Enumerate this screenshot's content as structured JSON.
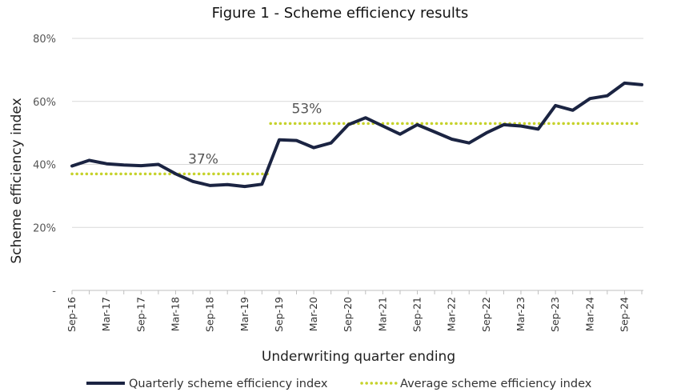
{
  "chart_data": {
    "type": "line",
    "title": "Figure 1 - Scheme efficiency results",
    "xlabel": "Underwriting quarter ending",
    "ylabel": "Scheme efficiency index",
    "ylim": [
      0,
      80
    ],
    "yticks": [
      0,
      20,
      40,
      60,
      80
    ],
    "ytick_labels": [
      "-",
      "20%",
      "40%",
      "60%",
      "80%"
    ],
    "x": [
      "Sep-16",
      "Dec-16",
      "Mar-17",
      "Jun-17",
      "Sep-17",
      "Dec-17",
      "Mar-18",
      "Jun-18",
      "Sep-18",
      "Dec-18",
      "Mar-19",
      "Jun-19",
      "Sep-19",
      "Dec-19",
      "Mar-20",
      "Jun-20",
      "Sep-20",
      "Dec-20",
      "Mar-21",
      "Jun-21",
      "Sep-21",
      "Dec-21",
      "Mar-22",
      "Jun-22",
      "Sep-22",
      "Dec-22",
      "Mar-23",
      "Jun-23",
      "Sep-23",
      "Dec-23",
      "Mar-24",
      "Jun-24",
      "Sep-24",
      "Dec-24"
    ],
    "xtick_labels": [
      "Sep-16",
      "Mar-17",
      "Sep-17",
      "Mar-18",
      "Sep-18",
      "Mar-19",
      "Sep-19",
      "Mar-20",
      "Sep-20",
      "Mar-21",
      "Sep-21",
      "Mar-22",
      "Sep-22",
      "Mar-23",
      "Sep-23",
      "Mar-24",
      "Sep-24"
    ],
    "grid": "horizontal",
    "legend_position": "bottom",
    "series": [
      {
        "name": "Quarterly scheme efficiency index",
        "style": "solid",
        "color": "#1b2442",
        "values": [
          39.5,
          41.3,
          40.2,
          39.8,
          39.6,
          40.0,
          37.0,
          34.6,
          33.3,
          33.6,
          33.0,
          33.7,
          47.8,
          47.6,
          45.3,
          46.8,
          52.6,
          54.8,
          52.2,
          49.6,
          52.6,
          50.3,
          48.0,
          46.8,
          50.0,
          52.6,
          52.2,
          51.2,
          58.7,
          57.2,
          60.9,
          61.8,
          65.8,
          65.3
        ]
      },
      {
        "name": "Average scheme efficiency index",
        "style": "dotted",
        "color": "#c6d22b",
        "segments": [
          {
            "from": "Sep-16",
            "to": "Jun-19",
            "value": 37
          },
          {
            "from": "Sep-19",
            "to": "Dec-24",
            "value": 53
          }
        ]
      }
    ],
    "annotations": [
      {
        "text": "37%",
        "x": "Jun-18",
        "y": 37
      },
      {
        "text": "53%",
        "x": "Dec-19",
        "y": 53
      }
    ]
  }
}
